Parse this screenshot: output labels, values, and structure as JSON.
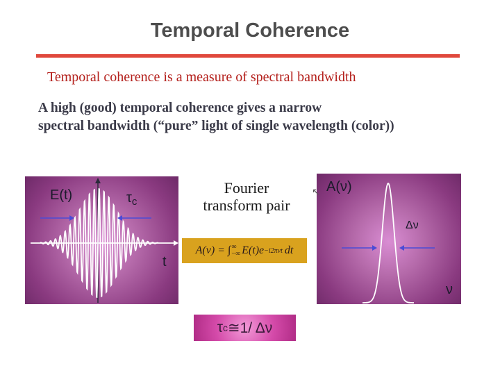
{
  "slide": {
    "title": "Temporal Coherence",
    "lead": "Temporal coherence is a measure of spectral bandwidth",
    "body_line1": "A high (good) temporal coherence gives a narrow",
    "body_line2": "spectral bandwidth (“pure” light of single wavelength (color))"
  },
  "left_plot": {
    "y_label": "E(t)",
    "x_label": "t",
    "tau_label": "τ",
    "tau_sub": "c"
  },
  "center": {
    "ft_line1": "Fourier",
    "ft_line2": "transform pair",
    "formula_lhs": "A(ν) = ∫",
    "formula_lower": "−∞",
    "formula_upper": "∞",
    "formula_rhs": "E(t)e",
    "formula_exp": "−i2πνt",
    "formula_dt": "dt",
    "result_tau": "τ",
    "result_sub": "c",
    "result_rest": "≅1/ Δν"
  },
  "right_plot": {
    "y_label": "A(ν)",
    "x_label": "ν",
    "width_label": "Δν"
  },
  "colors": {
    "title": "#4d4d4d",
    "rule": "#e0483c",
    "lead": "#b4201c",
    "body": "#3a3a48",
    "panel_center": "#d98dd3",
    "panel_edge": "#6e2a68",
    "formula_bg": "#d9a21e",
    "result_bg": "#d44aa9",
    "arrow": "#4b4bd6"
  }
}
